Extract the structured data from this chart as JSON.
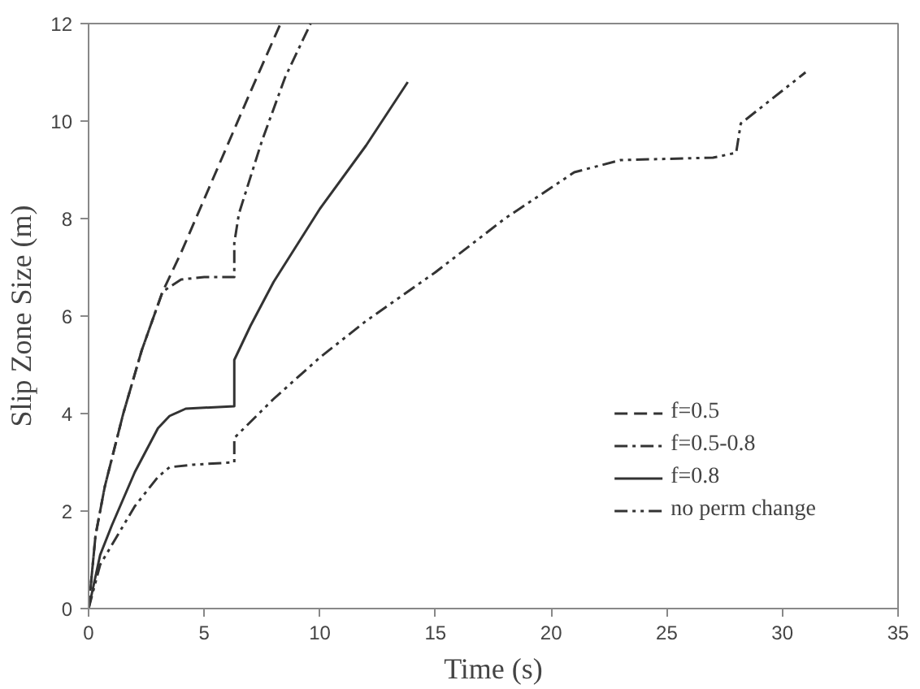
{
  "chart_data": {
    "type": "line",
    "xlabel": "Time (s)",
    "ylabel": "Slip Zone Size (m)",
    "xlim": [
      0,
      35
    ],
    "xticks": [
      0,
      5,
      10,
      15,
      20,
      25,
      30,
      35
    ],
    "ylim": [
      0,
      12
    ],
    "yticks": [
      0,
      2,
      4,
      6,
      8,
      10,
      12
    ],
    "grid": false,
    "legend": "bottom right",
    "marker": "none",
    "series": [
      {
        "name": "f=0.5",
        "color": "#333333",
        "line_style": "dashed",
        "x": [
          0,
          0.3,
          0.7,
          1.5,
          2.3,
          3.2,
          4,
          5,
          6,
          7,
          8.3
        ],
        "values": [
          0,
          1.5,
          2.5,
          4,
          5.3,
          6.5,
          7.3,
          8.4,
          9.5,
          10.6,
          12
        ]
      },
      {
        "name": "f=0.5-0.8",
        "color": "#333333",
        "line_style": "dashdot",
        "x": [
          0,
          0.3,
          0.7,
          1.5,
          2.3,
          3.2,
          4,
          5,
          6.3,
          6.3,
          6.5,
          7.5,
          8.5,
          9.6
        ],
        "values": [
          0,
          1.5,
          2.5,
          4,
          5.3,
          6.5,
          6.75,
          6.8,
          6.8,
          7.5,
          8.1,
          9.6,
          10.9,
          12
        ]
      },
      {
        "name": "f=0.8",
        "color": "#333333",
        "line_style": "solid",
        "x": [
          0,
          0.5,
          1,
          2,
          3,
          3.5,
          4.2,
          6.3,
          6.3,
          7,
          8,
          10,
          12,
          13.8
        ],
        "values": [
          0,
          1.1,
          1.7,
          2.8,
          3.7,
          3.95,
          4.1,
          4.15,
          5.1,
          5.8,
          6.7,
          8.2,
          9.5,
          10.8
        ]
      },
      {
        "name": "no perm change",
        "color": "#333333",
        "line_style": "dashdotdot",
        "x": [
          0,
          0.5,
          1,
          2,
          3,
          3.5,
          4.5,
          6.3,
          6.3,
          8,
          10,
          12,
          15,
          18,
          21,
          23,
          27,
          28,
          28.2,
          31
        ],
        "values": [
          0,
          0.9,
          1.3,
          2.1,
          2.7,
          2.9,
          2.95,
          3.0,
          3.5,
          4.3,
          5.15,
          5.9,
          6.9,
          8.0,
          8.95,
          9.2,
          9.25,
          9.35,
          9.95,
          11.0
        ]
      }
    ]
  }
}
